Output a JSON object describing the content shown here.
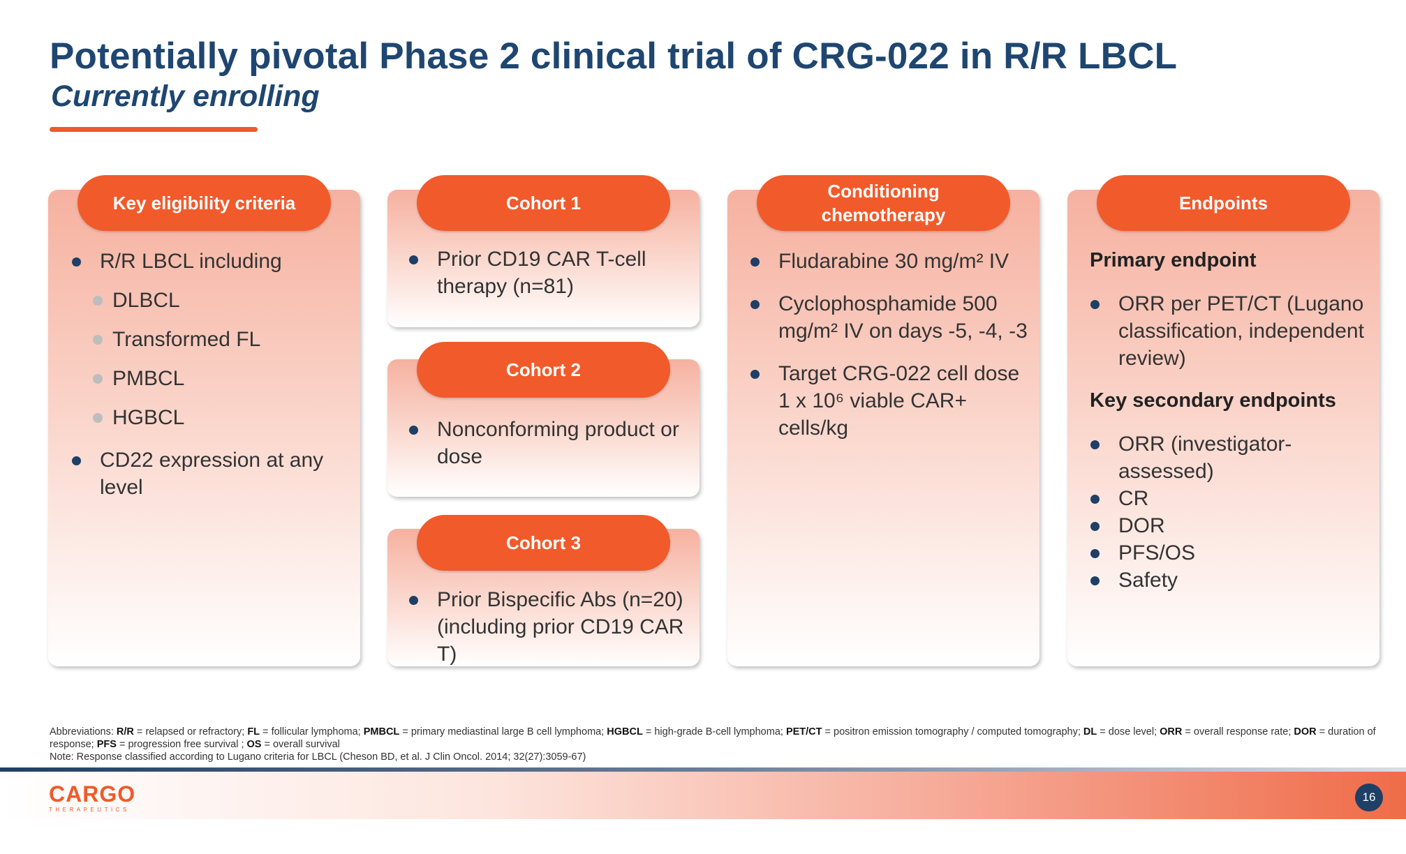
{
  "title": "Potentially pivotal Phase 2 clinical trial of CRG-022 in R/R LBCL",
  "subtitle": "Currently enrolling",
  "eligibility": {
    "heading": "Key eligibility criteria",
    "items": [
      {
        "text": "R/R LBCL including",
        "level": 1
      },
      {
        "text": "DLBCL",
        "level": 2
      },
      {
        "text": "Transformed FL",
        "level": 2
      },
      {
        "text": "PMBCL",
        "level": 2
      },
      {
        "text": "HGBCL",
        "level": 2
      },
      {
        "text": "CD22 expression at any level",
        "level": 1
      }
    ]
  },
  "cohorts": [
    {
      "heading": "Cohort 1",
      "items": [
        "Prior CD19 CAR T-cell therapy (n=81)"
      ]
    },
    {
      "heading": "Cohort 2",
      "items": [
        "Nonconforming product or dose"
      ]
    },
    {
      "heading": "Cohort 3",
      "items": [
        "Prior Bispecific Abs (n=20) (including prior CD19 CAR T)"
      ]
    }
  ],
  "conditioning": {
    "heading": "Conditioning chemotherapy",
    "items": [
      "Fludarabine 30 mg/m² IV",
      "Cyclophosphamide 500 mg/m² IV on days -5, -4, -3",
      "Target CRG-022 cell dose 1 x 10⁶ viable CAR+ cells/kg"
    ]
  },
  "endpoints": {
    "heading": "Endpoints",
    "primary_heading": "Primary endpoint",
    "primary_items": [
      "ORR per PET/CT (Lugano classification, independent review)"
    ],
    "secondary_heading": "Key secondary endpoints",
    "secondary_items": [
      "ORR (investigator-assessed)",
      "CR",
      "DOR",
      "PFS/OS",
      "Safety"
    ]
  },
  "footnote": {
    "abbrev_label": "Abbreviations:",
    "abbreviations": [
      {
        "term": "R/R",
        "def": "relapsed or refractory;"
      },
      {
        "term": "FL",
        "def": "follicular lymphoma;"
      },
      {
        "term": "PMBCL",
        "def": "primary mediastinal large B cell lymphoma;"
      },
      {
        "term": "HGBCL",
        "def": "high-grade B-cell lymphoma;"
      },
      {
        "term": "PET/CT",
        "def": "positron emission tomography / computed tomography;"
      },
      {
        "term": "DL",
        "def": "dose level;"
      },
      {
        "term": "ORR",
        "def": "overall response rate;"
      },
      {
        "term": "DOR",
        "def": "duration of response;"
      },
      {
        "term": "PFS",
        "def": "progression free survival ;"
      },
      {
        "term": "OS",
        "def": "overall survival"
      }
    ],
    "note": "Note: Response classified according to Lugano criteria for LBCL (Cheson BD, et al. J Clin Oncol. 2014; 32(27):3059-67)"
  },
  "footer": {
    "logo_main": "CARGO",
    "logo_sub": "THERAPEUTICS",
    "page_number": "16"
  },
  "colors": {
    "title": "#1e4670",
    "accent": "#ef5a2a",
    "bullet": "#1e3f66",
    "sub_bullet": "#bdbdbd"
  }
}
